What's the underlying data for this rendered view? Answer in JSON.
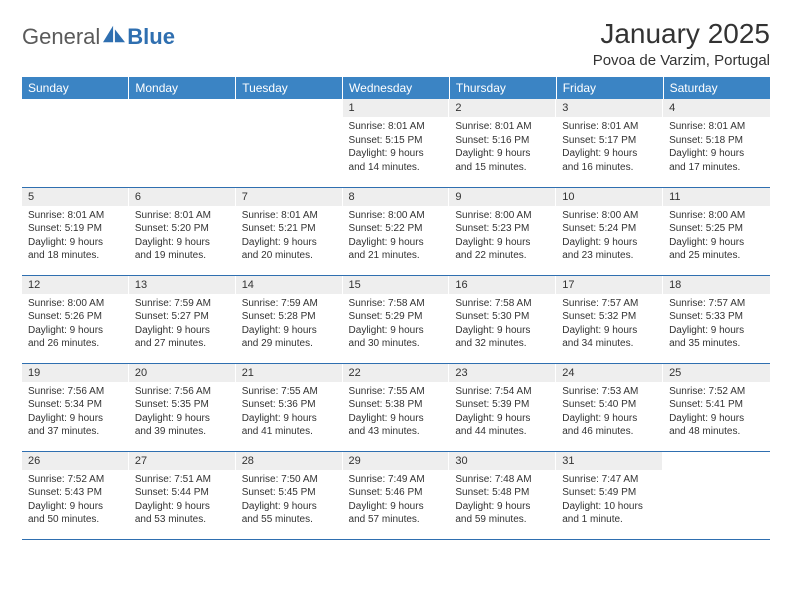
{
  "brand": {
    "part1": "General",
    "part2": "Blue"
  },
  "title": "January 2025",
  "location": "Povoa de Varzim, Portugal",
  "colors": {
    "header_bg": "#3b84c4",
    "rule": "#2f6fb0",
    "daynum_bg": "#eeeeee",
    "text": "#333333"
  },
  "dow": [
    "Sunday",
    "Monday",
    "Tuesday",
    "Wednesday",
    "Thursday",
    "Friday",
    "Saturday"
  ],
  "weeks": [
    [
      {
        "n": "",
        "lines": []
      },
      {
        "n": "",
        "lines": []
      },
      {
        "n": "",
        "lines": []
      },
      {
        "n": "1",
        "lines": [
          "Sunrise: 8:01 AM",
          "Sunset: 5:15 PM",
          "Daylight: 9 hours",
          "and 14 minutes."
        ]
      },
      {
        "n": "2",
        "lines": [
          "Sunrise: 8:01 AM",
          "Sunset: 5:16 PM",
          "Daylight: 9 hours",
          "and 15 minutes."
        ]
      },
      {
        "n": "3",
        "lines": [
          "Sunrise: 8:01 AM",
          "Sunset: 5:17 PM",
          "Daylight: 9 hours",
          "and 16 minutes."
        ]
      },
      {
        "n": "4",
        "lines": [
          "Sunrise: 8:01 AM",
          "Sunset: 5:18 PM",
          "Daylight: 9 hours",
          "and 17 minutes."
        ]
      }
    ],
    [
      {
        "n": "5",
        "lines": [
          "Sunrise: 8:01 AM",
          "Sunset: 5:19 PM",
          "Daylight: 9 hours",
          "and 18 minutes."
        ]
      },
      {
        "n": "6",
        "lines": [
          "Sunrise: 8:01 AM",
          "Sunset: 5:20 PM",
          "Daylight: 9 hours",
          "and 19 minutes."
        ]
      },
      {
        "n": "7",
        "lines": [
          "Sunrise: 8:01 AM",
          "Sunset: 5:21 PM",
          "Daylight: 9 hours",
          "and 20 minutes."
        ]
      },
      {
        "n": "8",
        "lines": [
          "Sunrise: 8:00 AM",
          "Sunset: 5:22 PM",
          "Daylight: 9 hours",
          "and 21 minutes."
        ]
      },
      {
        "n": "9",
        "lines": [
          "Sunrise: 8:00 AM",
          "Sunset: 5:23 PM",
          "Daylight: 9 hours",
          "and 22 minutes."
        ]
      },
      {
        "n": "10",
        "lines": [
          "Sunrise: 8:00 AM",
          "Sunset: 5:24 PM",
          "Daylight: 9 hours",
          "and 23 minutes."
        ]
      },
      {
        "n": "11",
        "lines": [
          "Sunrise: 8:00 AM",
          "Sunset: 5:25 PM",
          "Daylight: 9 hours",
          "and 25 minutes."
        ]
      }
    ],
    [
      {
        "n": "12",
        "lines": [
          "Sunrise: 8:00 AM",
          "Sunset: 5:26 PM",
          "Daylight: 9 hours",
          "and 26 minutes."
        ]
      },
      {
        "n": "13",
        "lines": [
          "Sunrise: 7:59 AM",
          "Sunset: 5:27 PM",
          "Daylight: 9 hours",
          "and 27 minutes."
        ]
      },
      {
        "n": "14",
        "lines": [
          "Sunrise: 7:59 AM",
          "Sunset: 5:28 PM",
          "Daylight: 9 hours",
          "and 29 minutes."
        ]
      },
      {
        "n": "15",
        "lines": [
          "Sunrise: 7:58 AM",
          "Sunset: 5:29 PM",
          "Daylight: 9 hours",
          "and 30 minutes."
        ]
      },
      {
        "n": "16",
        "lines": [
          "Sunrise: 7:58 AM",
          "Sunset: 5:30 PM",
          "Daylight: 9 hours",
          "and 32 minutes."
        ]
      },
      {
        "n": "17",
        "lines": [
          "Sunrise: 7:57 AM",
          "Sunset: 5:32 PM",
          "Daylight: 9 hours",
          "and 34 minutes."
        ]
      },
      {
        "n": "18",
        "lines": [
          "Sunrise: 7:57 AM",
          "Sunset: 5:33 PM",
          "Daylight: 9 hours",
          "and 35 minutes."
        ]
      }
    ],
    [
      {
        "n": "19",
        "lines": [
          "Sunrise: 7:56 AM",
          "Sunset: 5:34 PM",
          "Daylight: 9 hours",
          "and 37 minutes."
        ]
      },
      {
        "n": "20",
        "lines": [
          "Sunrise: 7:56 AM",
          "Sunset: 5:35 PM",
          "Daylight: 9 hours",
          "and 39 minutes."
        ]
      },
      {
        "n": "21",
        "lines": [
          "Sunrise: 7:55 AM",
          "Sunset: 5:36 PM",
          "Daylight: 9 hours",
          "and 41 minutes."
        ]
      },
      {
        "n": "22",
        "lines": [
          "Sunrise: 7:55 AM",
          "Sunset: 5:38 PM",
          "Daylight: 9 hours",
          "and 43 minutes."
        ]
      },
      {
        "n": "23",
        "lines": [
          "Sunrise: 7:54 AM",
          "Sunset: 5:39 PM",
          "Daylight: 9 hours",
          "and 44 minutes."
        ]
      },
      {
        "n": "24",
        "lines": [
          "Sunrise: 7:53 AM",
          "Sunset: 5:40 PM",
          "Daylight: 9 hours",
          "and 46 minutes."
        ]
      },
      {
        "n": "25",
        "lines": [
          "Sunrise: 7:52 AM",
          "Sunset: 5:41 PM",
          "Daylight: 9 hours",
          "and 48 minutes."
        ]
      }
    ],
    [
      {
        "n": "26",
        "lines": [
          "Sunrise: 7:52 AM",
          "Sunset: 5:43 PM",
          "Daylight: 9 hours",
          "and 50 minutes."
        ]
      },
      {
        "n": "27",
        "lines": [
          "Sunrise: 7:51 AM",
          "Sunset: 5:44 PM",
          "Daylight: 9 hours",
          "and 53 minutes."
        ]
      },
      {
        "n": "28",
        "lines": [
          "Sunrise: 7:50 AM",
          "Sunset: 5:45 PM",
          "Daylight: 9 hours",
          "and 55 minutes."
        ]
      },
      {
        "n": "29",
        "lines": [
          "Sunrise: 7:49 AM",
          "Sunset: 5:46 PM",
          "Daylight: 9 hours",
          "and 57 minutes."
        ]
      },
      {
        "n": "30",
        "lines": [
          "Sunrise: 7:48 AM",
          "Sunset: 5:48 PM",
          "Daylight: 9 hours",
          "and 59 minutes."
        ]
      },
      {
        "n": "31",
        "lines": [
          "Sunrise: 7:47 AM",
          "Sunset: 5:49 PM",
          "Daylight: 10 hours",
          "and 1 minute."
        ]
      },
      {
        "n": "",
        "lines": []
      }
    ]
  ]
}
